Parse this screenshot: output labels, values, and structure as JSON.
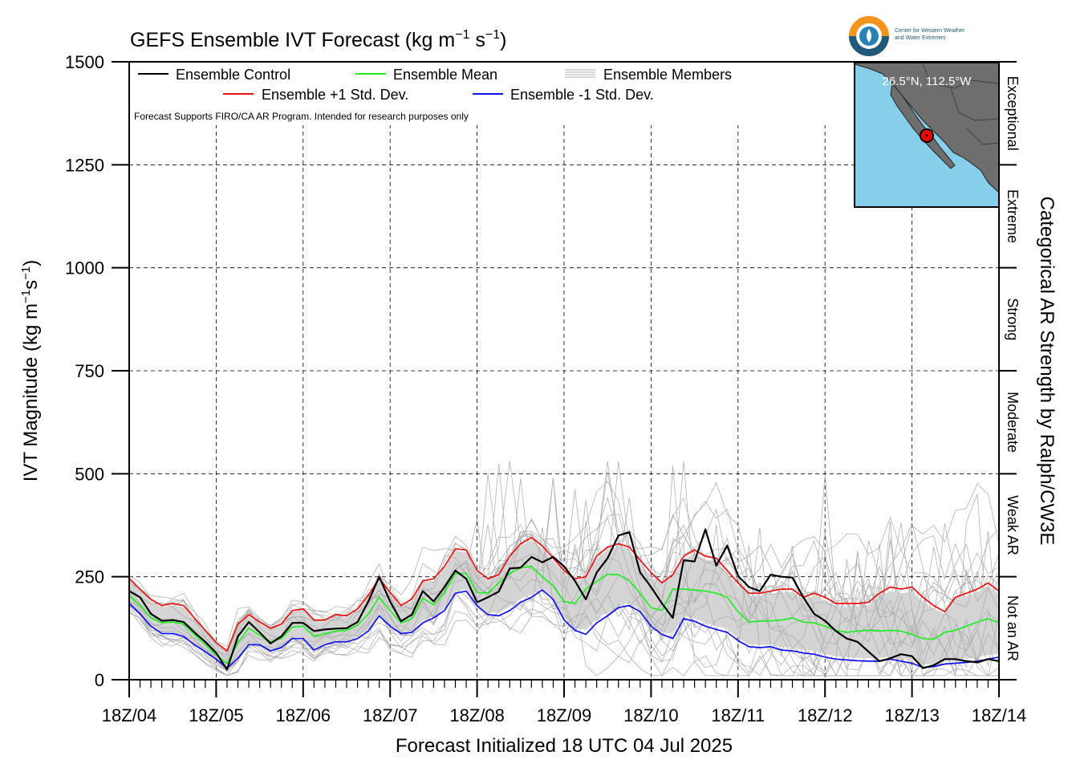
{
  "chart_data": {
    "type": "line",
    "title": "GEFS Ensemble IVT Forecast (kg m",
    "title_sup1": "−1",
    "title_mid": " s",
    "title_sup2": "−1",
    "title_end": ")",
    "ylabel_a": "IVT Magnitude (kg m",
    "ylabel_sup1": "−1",
    "ylabel_b": "s",
    "ylabel_sup2": "−1",
    "ylabel_c": ")",
    "right_axis_label": "Categorical AR Strength by Ralph/CW3E",
    "xlabel": "Forecast Initialized 18 UTC 04 Jul 2025",
    "note": "Forecast Supports FIRO/CA AR Program. Intended for research purposes only",
    "ylim": [
      0,
      1500
    ],
    "xlim": [
      0,
      10
    ],
    "yticks": [
      0,
      250,
      500,
      750,
      1000,
      1250,
      1500
    ],
    "xtick_labels": [
      "18Z/04",
      "18Z/05",
      "18Z/06",
      "18Z/07",
      "18Z/08",
      "18Z/09",
      "18Z/10",
      "18Z/11",
      "18Z/12",
      "18Z/13",
      "18Z/14"
    ],
    "categories_right": [
      {
        "label": "Not an AR",
        "range": [
          0,
          250
        ]
      },
      {
        "label": "Weak AR",
        "range": [
          250,
          500
        ]
      },
      {
        "label": "Moderate",
        "range": [
          500,
          750
        ]
      },
      {
        "label": "Strong",
        "range": [
          750,
          1000
        ]
      },
      {
        "label": "Extreme",
        "range": [
          1000,
          1250
        ]
      },
      {
        "label": "Exceptional",
        "range": [
          1250,
          1500
        ]
      }
    ],
    "grid": true,
    "legend": [
      {
        "label": "Ensemble Control",
        "color": "#000000"
      },
      {
        "label": "Ensemble Mean",
        "color": "#22ee22"
      },
      {
        "label": "Ensemble Members",
        "color": "#aaaaaa"
      },
      {
        "label": "Ensemble +1 Std. Dev.",
        "color": "#ee1111"
      },
      {
        "label": "Ensemble -1 Std. Dev.",
        "color": "#1111ee"
      }
    ],
    "x_step_days": 0.125,
    "series": [
      {
        "name": "Ensemble Control",
        "color": "#000000",
        "values": [
          215,
          200,
          160,
          143,
          145,
          140,
          115,
          92,
          65,
          25,
          105,
          140,
          115,
          88,
          105,
          138,
          138,
          118,
          122,
          124,
          125,
          140,
          190,
          250,
          190,
          142,
          158,
          215,
          190,
          225,
          265,
          245,
          188,
          200,
          214,
          270,
          272,
          298,
          285,
          298,
          275,
          240,
          195,
          260,
          295,
          350,
          358,
          260,
          225,
          185,
          150,
          290,
          287,
          365,
          277,
          326,
          252,
          225,
          215,
          255,
          250,
          248,
          200,
          160,
          143,
          118,
          100,
          92,
          68,
          45,
          52,
          62,
          57,
          28,
          35,
          50,
          50,
          45,
          42,
          50,
          45
        ]
      },
      {
        "name": "Ensemble Mean",
        "color": "#22ee22",
        "values": [
          205,
          180,
          150,
          138,
          140,
          135,
          110,
          85,
          60,
          40,
          90,
          125,
          108,
          92,
          100,
          128,
          130,
          105,
          112,
          118,
          120,
          132,
          160,
          200,
          168,
          138,
          148,
          198,
          182,
          212,
          258,
          258,
          212,
          210,
          235,
          258,
          272,
          275,
          250,
          228,
          190,
          185,
          220,
          238,
          256,
          255,
          240,
          210,
          175,
          168,
          220,
          220,
          218,
          215,
          210,
          200,
          165,
          140,
          142,
          143,
          145,
          150,
          140,
          138,
          130,
          120,
          115,
          118,
          120,
          118,
          120,
          118,
          110,
          100,
          98,
          115,
          120,
          130,
          140,
          148,
          138
        ]
      },
      {
        "name": "Ensemble +1 Std. Dev.",
        "color": "#ee1111",
        "values": [
          245,
          220,
          195,
          180,
          185,
          180,
          150,
          120,
          90,
          70,
          135,
          158,
          140,
          125,
          135,
          168,
          172,
          145,
          145,
          158,
          155,
          172,
          205,
          245,
          212,
          180,
          196,
          240,
          245,
          275,
          318,
          315,
          265,
          245,
          255,
          300,
          330,
          345,
          325,
          295,
          265,
          245,
          250,
          300,
          322,
          330,
          322,
          290,
          260,
          235,
          255,
          300,
          315,
          300,
          295,
          265,
          235,
          210,
          210,
          215,
          220,
          220,
          200,
          210,
          200,
          185,
          185,
          185,
          188,
          210,
          225,
          220,
          225,
          200,
          180,
          165,
          200,
          210,
          220,
          235,
          215
        ]
      },
      {
        "name": "Ensemble -1 Std. Dev.",
        "color": "#1111ee",
        "values": [
          185,
          160,
          130,
          112,
          112,
          105,
          85,
          68,
          50,
          28,
          52,
          85,
          85,
          70,
          78,
          100,
          100,
          72,
          85,
          92,
          92,
          100,
          118,
          155,
          130,
          112,
          115,
          138,
          150,
          168,
          210,
          215,
          180,
          158,
          155,
          168,
          188,
          200,
          218,
          195,
          145,
          120,
          110,
          138,
          155,
          175,
          180,
          165,
          130,
          110,
          100,
          148,
          142,
          130,
          122,
          115,
          95,
          80,
          78,
          80,
          72,
          70,
          65,
          62,
          55,
          50,
          48,
          46,
          45,
          45,
          50,
          45,
          40,
          30,
          32,
          38,
          40,
          42,
          45,
          50,
          55
        ]
      }
    ]
  }
}
